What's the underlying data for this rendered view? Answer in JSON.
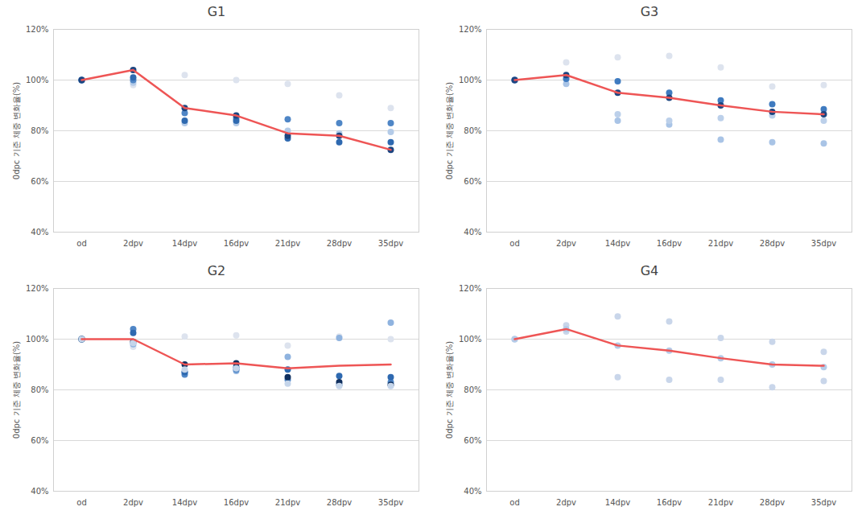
{
  "chart_data": [
    {
      "type": "line",
      "title": "G1",
      "y_label": "0dpc 기준 체중 변화율(%)",
      "categories": [
        "od",
        "2dpv",
        "14dpv",
        "16dpv",
        "21dpv",
        "28dpv",
        "35dpv"
      ],
      "ylim": [
        40,
        120
      ],
      "yticks": [
        {
          "value": 40,
          "label": "40%"
        },
        {
          "value": 60,
          "label": "60%"
        },
        {
          "value": 80,
          "label": "80%"
        },
        {
          "value": 100,
          "label": "100%"
        },
        {
          "value": 120,
          "label": "120%"
        }
      ],
      "grid": true,
      "series": [
        {
          "type": "scatter",
          "color": "#dde3ee",
          "values": [
            100,
            98,
            102,
            100,
            98.5,
            94,
            89
          ]
        },
        {
          "type": "scatter",
          "color": "#b4cbe8",
          "values": [
            100,
            99,
            83,
            83,
            80,
            79,
            79.5
          ]
        },
        {
          "type": "scatter",
          "color": "#4f86c6",
          "values": [
            100,
            100,
            87,
            85,
            84.5,
            83,
            83
          ]
        },
        {
          "type": "scatter",
          "color": "#2e69b0",
          "values": [
            100,
            101,
            84,
            84,
            77,
            75.5,
            75.5
          ]
        },
        {
          "type": "scatter",
          "color": "#1c4580",
          "values": [
            100,
            104,
            89,
            86,
            78,
            78,
            72.5
          ]
        },
        {
          "type": "line",
          "color": "#ee5555",
          "values": [
            100,
            104,
            89,
            86,
            79,
            78,
            72.5
          ]
        }
      ]
    },
    {
      "type": "line",
      "title": "G3",
      "y_label": "0dpc 기준 체중 변화율(%)",
      "categories": [
        "od",
        "2dpv",
        "14dpv",
        "16dpv",
        "21dpv",
        "28dpv",
        "35dpv"
      ],
      "ylim": [
        40,
        120
      ],
      "yticks": [
        {
          "value": 40,
          "label": "40%"
        },
        {
          "value": 60,
          "label": "60%"
        },
        {
          "value": 80,
          "label": "80%"
        },
        {
          "value": 100,
          "label": "100%"
        },
        {
          "value": 120,
          "label": "120%"
        }
      ],
      "grid": true,
      "series": [
        {
          "type": "scatter",
          "color": "#dde3ee",
          "values": [
            100,
            107,
            109,
            109.5,
            105,
            97.5,
            98
          ]
        },
        {
          "type": "scatter",
          "color": "#a9c4e6",
          "values": [
            100,
            98.5,
            84,
            82.5,
            76.5,
            75.5,
            75
          ]
        },
        {
          "type": "scatter",
          "color": "#bcd0ea",
          "values": [
            100,
            101,
            86.5,
            84,
            85,
            86,
            84
          ]
        },
        {
          "type": "scatter",
          "color": "#3f7bc0",
          "values": [
            100,
            100.5,
            99.5,
            95,
            92,
            90.5,
            88.5
          ]
        },
        {
          "type": "scatter",
          "color": "#1c4580",
          "values": [
            100,
            102,
            95,
            93,
            90,
            87.5,
            86.5
          ]
        },
        {
          "type": "line",
          "color": "#ee5555",
          "values": [
            100,
            102,
            95,
            93,
            90,
            87.5,
            86.5
          ]
        }
      ]
    },
    {
      "type": "line",
      "title": "G2",
      "y_label": "0dpc 기준 체중 변화율(%)",
      "categories": [
        "od",
        "2dpv",
        "14dpv",
        "16dpv",
        "21dpv",
        "28dpv",
        "35dpv"
      ],
      "ylim": [
        40,
        120
      ],
      "yticks": [
        {
          "value": 40,
          "label": "40%"
        },
        {
          "value": 60,
          "label": "60%"
        },
        {
          "value": 80,
          "label": "80%"
        },
        {
          "value": 100,
          "label": "100%"
        },
        {
          "value": 120,
          "label": "120%"
        }
      ],
      "grid": true,
      "series": [
        {
          "type": "scatter",
          "color": "#dde3ee",
          "values": [
            100,
            97,
            101,
            101.5,
            97.5,
            101,
            100
          ]
        },
        {
          "type": "scatter",
          "color": "#8fb3df",
          "values": [
            100,
            98,
            87,
            87.5,
            93,
            100.5,
            106.5
          ]
        },
        {
          "type": "scatter",
          "color": "#4f86c6",
          "values": [
            100,
            104,
            86,
            88,
            84,
            82,
            83
          ]
        },
        {
          "type": "scatter",
          "color": "#2e69b0",
          "values": [
            100,
            102.5,
            87,
            89,
            88,
            85.5,
            85
          ]
        },
        {
          "type": "scatter",
          "color": "#0f2f5e",
          "values": [
            100,
            99,
            90,
            90.5,
            85,
            83,
            82
          ]
        },
        {
          "type": "scatter",
          "color": "#c5d5ea",
          "values": [
            100,
            98.5,
            88,
            88.5,
            82.5,
            81.5,
            81.5
          ]
        },
        {
          "type": "line",
          "color": "#ee5555",
          "values": [
            100,
            100,
            90,
            90.5,
            88.5,
            89.5,
            90
          ]
        }
      ]
    },
    {
      "type": "line",
      "title": "G4",
      "y_label": "0dpc 기준 체중 변화율(%)",
      "categories": [
        "od",
        "2dpv",
        "14dpv",
        "16dpv",
        "21dpv",
        "28dpv",
        "35dpv"
      ],
      "ylim": [
        40,
        120
      ],
      "yticks": [
        {
          "value": 40,
          "label": "40%"
        },
        {
          "value": 60,
          "label": "60%"
        },
        {
          "value": 80,
          "label": "80%"
        },
        {
          "value": 100,
          "label": "100%"
        },
        {
          "value": 120,
          "label": "120%"
        }
      ],
      "grid": true,
      "series": [
        {
          "type": "scatter",
          "color": "#c9d6ea",
          "values": [
            100,
            105.5,
            109,
            107,
            100.5,
            99,
            95
          ]
        },
        {
          "type": "scatter",
          "color": "#c9d6ea",
          "values": [
            100,
            103,
            85,
            84,
            84,
            81,
            83.5
          ]
        },
        {
          "type": "scatter",
          "color": "#b4cbe8",
          "values": [
            100,
            104,
            97.5,
            95.5,
            92.5,
            90,
            89
          ]
        },
        {
          "type": "line",
          "color": "#ee5555",
          "values": [
            100,
            104,
            97.5,
            95.5,
            92.5,
            90,
            89.5
          ]
        }
      ]
    }
  ]
}
